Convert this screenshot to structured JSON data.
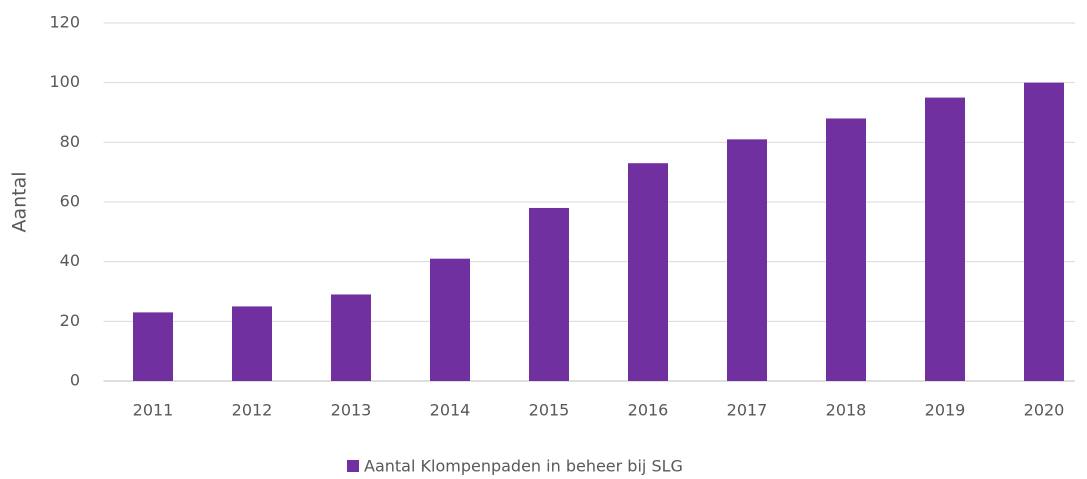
{
  "chart_data": {
    "type": "bar",
    "categories": [
      "2011",
      "2012",
      "2013",
      "2014",
      "2015",
      "2016",
      "2017",
      "2018",
      "2019",
      "2020"
    ],
    "series": [
      {
        "name": "Aantal Klompenpaden in beheer bij SLG",
        "color": "#7030a0",
        "values": [
          23,
          25,
          29,
          41,
          58,
          73,
          81,
          88,
          95,
          100
        ]
      }
    ],
    "y_label": "Aantal",
    "ylim": [
      0,
      120
    ],
    "yticks": [
      0,
      20,
      40,
      60,
      80,
      100,
      120
    ],
    "grid": true,
    "legend": "bottom"
  }
}
